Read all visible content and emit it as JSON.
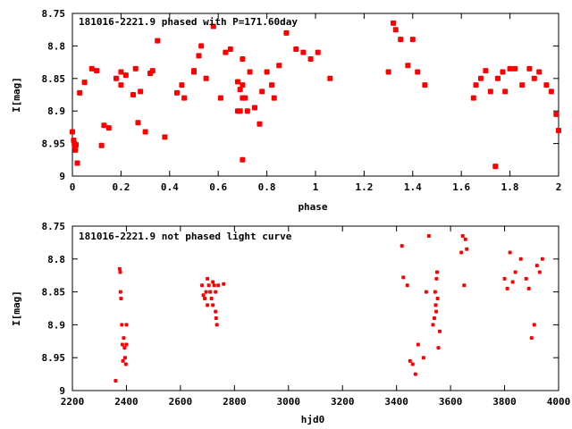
{
  "chart_data": [
    {
      "type": "scatter",
      "title": "181016-2221.9 phased with P=171.60day",
      "xlabel": "phase",
      "ylabel": "I[mag]",
      "xlim": [
        0,
        2
      ],
      "ylim": [
        9,
        8.75
      ],
      "xticks": [
        0,
        0.2,
        0.4,
        0.6,
        0.8,
        1,
        1.2,
        1.4,
        1.6,
        1.8,
        2
      ],
      "xtick_labels": [
        "0",
        "0.2",
        "0.4",
        "0.6",
        "0.8",
        "1",
        "1.2",
        "1.4",
        "1.6",
        "1.8",
        "2"
      ],
      "yticks": [
        8.75,
        8.8,
        8.85,
        8.9,
        8.95,
        9
      ],
      "ytick_labels": [
        "8.75",
        "8.8",
        "8.85",
        "8.9",
        "8.95",
        "9"
      ],
      "marker_color": "#ff0000",
      "series": [
        {
          "x": [
            0.0,
            0.005,
            0.008,
            0.01,
            0.012,
            0.015,
            0.02,
            0.03,
            0.05,
            0.08,
            0.1,
            0.12,
            0.13,
            0.15,
            0.18,
            0.2,
            0.2,
            0.22,
            0.25,
            0.26,
            0.27,
            0.28,
            0.3,
            0.32,
            0.33,
            0.35,
            0.38,
            0.43,
            0.45,
            0.46,
            0.5,
            0.5,
            0.52,
            0.53,
            0.55,
            0.58,
            0.61,
            0.63,
            0.65,
            0.68,
            0.68,
            0.69,
            0.69,
            0.7,
            0.7,
            0.7,
            0.7,
            0.71,
            0.72,
            0.73,
            0.75,
            0.77,
            0.78,
            0.8,
            0.82,
            0.83,
            0.85,
            0.88,
            0.92,
            0.95,
            0.98,
            1.01,
            1.06,
            1.3,
            1.32,
            1.33,
            1.35,
            1.38,
            1.4,
            1.42,
            1.45,
            1.65,
            1.66,
            1.68,
            1.7,
            1.72,
            1.74,
            1.75,
            1.77,
            1.78,
            1.8,
            1.82,
            1.85,
            1.88,
            1.9,
            1.92,
            1.95,
            1.97,
            1.99,
            2.0
          ],
          "y": [
            8.932,
            8.945,
            8.95,
            8.955,
            8.96,
            8.952,
            8.98,
            8.872,
            8.856,
            8.835,
            8.838,
            8.953,
            8.922,
            8.926,
            8.85,
            8.86,
            8.84,
            8.845,
            8.875,
            8.835,
            8.918,
            8.87,
            8.932,
            8.842,
            8.838,
            8.792,
            8.94,
            8.872,
            8.86,
            8.88,
            8.838,
            8.84,
            8.815,
            8.8,
            8.85,
            8.77,
            8.88,
            8.81,
            8.805,
            8.855,
            8.9,
            8.9,
            8.867,
            8.975,
            8.82,
            8.86,
            8.88,
            8.88,
            8.9,
            8.84,
            8.895,
            8.92,
            8.87,
            8.84,
            8.86,
            8.88,
            8.83,
            8.78,
            8.805,
            8.81,
            8.82,
            8.81,
            8.85,
            8.84,
            8.765,
            8.775,
            8.79,
            8.83,
            8.79,
            8.84,
            8.86,
            8.88,
            8.86,
            8.85,
            8.838,
            8.87,
            8.985,
            8.85,
            8.84,
            8.87,
            8.835,
            8.835,
            8.86,
            8.835,
            8.85,
            8.84,
            8.86,
            8.87,
            8.905,
            8.93
          ]
        }
      ]
    },
    {
      "type": "scatter",
      "title": "181016-2221.9 not phased light curve",
      "xlabel": "hjd0",
      "ylabel": "I[mag]",
      "xlim": [
        2200,
        4000
      ],
      "ylim": [
        9,
        8.75
      ],
      "xticks": [
        2200,
        2400,
        2600,
        2800,
        3000,
        3200,
        3400,
        3600,
        3800,
        4000
      ],
      "xtick_labels": [
        "2200",
        "2400",
        "2600",
        "2800",
        "3000",
        "3200",
        "3400",
        "3600",
        "3800",
        "4000"
      ],
      "yticks": [
        8.75,
        8.8,
        8.85,
        8.9,
        8.95,
        9
      ],
      "ytick_labels": [
        "8.75",
        "8.8",
        "8.85",
        "8.9",
        "8.95",
        "9"
      ],
      "marker_color": "#ff0000",
      "series": [
        {
          "x": [
            2360,
            2375,
            2377,
            2378,
            2380,
            2383,
            2385,
            2387,
            2390,
            2393,
            2395,
            2398,
            2400,
            2400,
            2680,
            2685,
            2690,
            2695,
            2700,
            2700,
            2705,
            2710,
            2715,
            2720,
            2720,
            2725,
            2730,
            2730,
            2732,
            2735,
            2740,
            2760,
            3420,
            3425,
            3440,
            3450,
            3460,
            3470,
            3480,
            3500,
            3510,
            3520,
            3535,
            3540,
            3543,
            3545,
            3547,
            3548,
            3550,
            3552,
            3555,
            3560,
            3640,
            3645,
            3650,
            3655,
            3660,
            3800,
            3810,
            3820,
            3830,
            3840,
            3860,
            3880,
            3890,
            3900,
            3910,
            3920,
            3930,
            3940
          ],
          "y": [
            8.985,
            8.815,
            8.82,
            8.85,
            8.86,
            8.9,
            8.93,
            8.955,
            8.92,
            8.935,
            8.95,
            8.96,
            8.93,
            8.9,
            8.84,
            8.855,
            8.86,
            8.85,
            8.87,
            8.83,
            8.84,
            8.85,
            8.86,
            8.87,
            8.835,
            8.84,
            8.85,
            8.88,
            8.89,
            8.9,
            8.84,
            8.838,
            8.78,
            8.828,
            8.84,
            8.955,
            8.96,
            8.975,
            8.93,
            8.95,
            8.85,
            8.765,
            8.9,
            8.89,
            8.85,
            8.87,
            8.88,
            8.83,
            8.82,
            8.86,
            8.935,
            8.91,
            8.79,
            8.765,
            8.84,
            8.77,
            8.785,
            8.83,
            8.845,
            8.79,
            8.835,
            8.82,
            8.8,
            8.83,
            8.845,
            8.92,
            8.9,
            8.81,
            8.82,
            8.8
          ]
        }
      ]
    }
  ]
}
